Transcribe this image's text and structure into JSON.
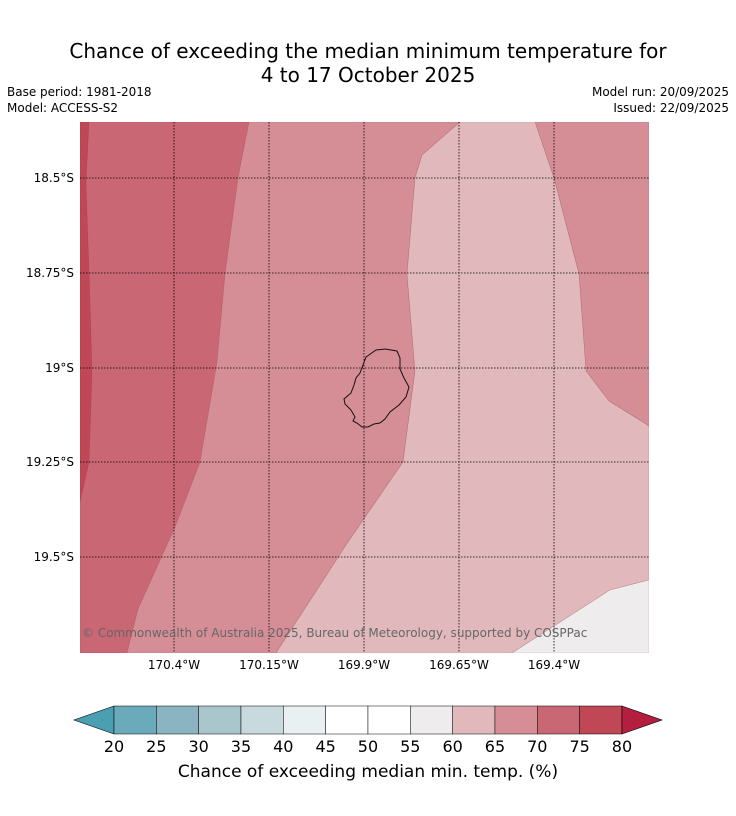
{
  "title_line1": "Chance of exceeding the median minimum temperature for",
  "title_line2": "4 to 17 October 2025",
  "base_period": "Base period: 1981-2018",
  "model": "Model: ACCESS-S2",
  "model_run": "Model run: 20/09/2025",
  "issued": "Issued: 22/09/2025",
  "credit": "© Commonwealth of Australia 2025, Bureau of Meteorology, supported by COSPPac",
  "lat_labels": [
    "18.5°S",
    "18.75°S",
    "19°S",
    "19.25°S",
    "19.5°S"
  ],
  "lon_labels": [
    "170.4°W",
    "170.15°W",
    "169.9°W",
    "169.65°W",
    "169.4°W"
  ],
  "colorbar": {
    "title": "Chance of exceeding median min. temp. (%)",
    "ticks": [
      "20",
      "25",
      "30",
      "35",
      "40",
      "45",
      "50",
      "55",
      "60",
      "65",
      "70",
      "75",
      "80"
    ],
    "colors": [
      "#6aaabb",
      "#8ab4c0",
      "#a8c6cb",
      "#c9dade",
      "#e8f0f1",
      "#ffffff",
      "#ffffff",
      "#eeeced",
      "#e1b9bd",
      "#d68e96",
      "#c96775",
      "#c04755"
    ],
    "under_color": "#4a9fb0",
    "over_color": "#b41f3f"
  },
  "map_colors": {
    "band_75_80": "#c04755",
    "band_70_75": "#c96775",
    "band_65_70": "#d68e96",
    "band_60_65": "#e1b9bd",
    "band_55_60": "#eeeced"
  }
}
